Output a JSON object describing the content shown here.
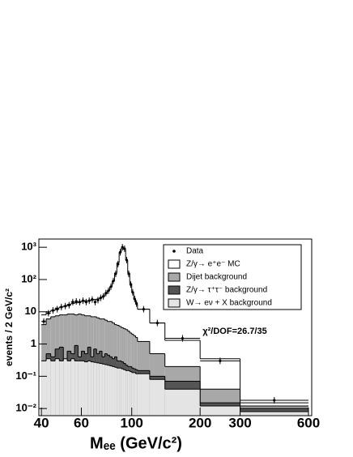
{
  "chart_data": {
    "type": "histogram",
    "x_label": "Mₑₑ (GeV/c²)",
    "y_label": "events / 2 GeV/c²",
    "annotation": "χ²/DOF=26.7/35",
    "xlog": true,
    "ylog": true,
    "xlim": [
      39,
      620
    ],
    "ylim": [
      0.006,
      1800
    ],
    "xticks": [
      40,
      60,
      100,
      200,
      300,
      600
    ],
    "yticks": [
      {
        "value": 0.01,
        "label": "10⁻²"
      },
      {
        "value": 0.1,
        "label": "10⁻¹"
      },
      1,
      10,
      {
        "value": 100,
        "label": "10²"
      },
      {
        "value": 1000,
        "label": "10³"
      }
    ],
    "bins": [
      40,
      42,
      44,
      46,
      48,
      50,
      52,
      54,
      56,
      58,
      60,
      62,
      64,
      66,
      68,
      70,
      72,
      74,
      76,
      78,
      80,
      82,
      84,
      86,
      88,
      90,
      92,
      94,
      96,
      98,
      100,
      102,
      104,
      106,
      120,
      140,
      200,
      300,
      600
    ],
    "data": {
      "name": "Data",
      "color": "#000000",
      "values": [
        5,
        9,
        11,
        12,
        14,
        15,
        16,
        20,
        21,
        20,
        22,
        20,
        22,
        24,
        20,
        23,
        27,
        30,
        38,
        45,
        60,
        90,
        150,
        300,
        700,
        1000,
        900,
        400,
        150,
        70,
        40,
        25,
        18,
        12,
        4.5,
        1.5,
        0.3,
        0.018
      ]
    },
    "series": [
      {
        "name": "Z/γ→ e⁺e⁻ MC",
        "color": "#ffffff",
        "values": [
          8,
          10,
          11,
          13,
          14,
          15,
          17,
          18,
          19,
          20,
          21,
          22,
          22,
          23,
          24,
          25,
          27,
          30,
          36,
          45,
          60,
          90,
          160,
          330,
          700,
          950,
          850,
          400,
          160,
          75,
          40,
          25,
          17,
          12,
          4.5,
          1.3,
          0.35,
          0.015
        ]
      },
      {
        "name": "Dijet background",
        "color": "#a8a8a8",
        "values": [
          4,
          6,
          7,
          7.5,
          8,
          8,
          8.5,
          8.5,
          8,
          8.5,
          8,
          7.5,
          7.5,
          7,
          7,
          6.5,
          6,
          6,
          5.5,
          5,
          5,
          4.5,
          4,
          3.8,
          3.5,
          3.2,
          3,
          2.8,
          2.5,
          2.2,
          2,
          1.8,
          1.6,
          1.2,
          0.5,
          0.2,
          0.04,
          0.012
        ]
      },
      {
        "name": "Z/γ→ τ⁺τ⁻ background",
        "color": "#555555",
        "values": [
          0.3,
          0.5,
          0.4,
          0.7,
          0.8,
          0.3,
          0.6,
          0.5,
          0.9,
          0.4,
          0.6,
          0.5,
          0.8,
          0.4,
          0.7,
          0.5,
          0.6,
          0.4,
          0.5,
          0.45,
          0.4,
          0.35,
          0.4,
          0.3,
          0.3,
          0.28,
          0.25,
          0.22,
          0.2,
          0.2,
          0.18,
          0.17,
          0.16,
          0.15,
          0.1,
          0.07,
          0.015,
          0.01
        ]
      },
      {
        "name": "W→ eν + X background",
        "color": "#e4e4e4",
        "values": [
          0.3,
          0.35,
          0.3,
          0.35,
          0.3,
          0.35,
          0.3,
          0.35,
          0.3,
          0.3,
          0.3,
          0.28,
          0.3,
          0.28,
          0.27,
          0.26,
          0.25,
          0.24,
          0.23,
          0.22,
          0.21,
          0.2,
          0.19,
          0.18,
          0.18,
          0.17,
          0.16,
          0.15,
          0.15,
          0.14,
          0.13,
          0.13,
          0.12,
          0.12,
          0.08,
          0.04,
          0.012,
          0.008
        ]
      }
    ]
  }
}
